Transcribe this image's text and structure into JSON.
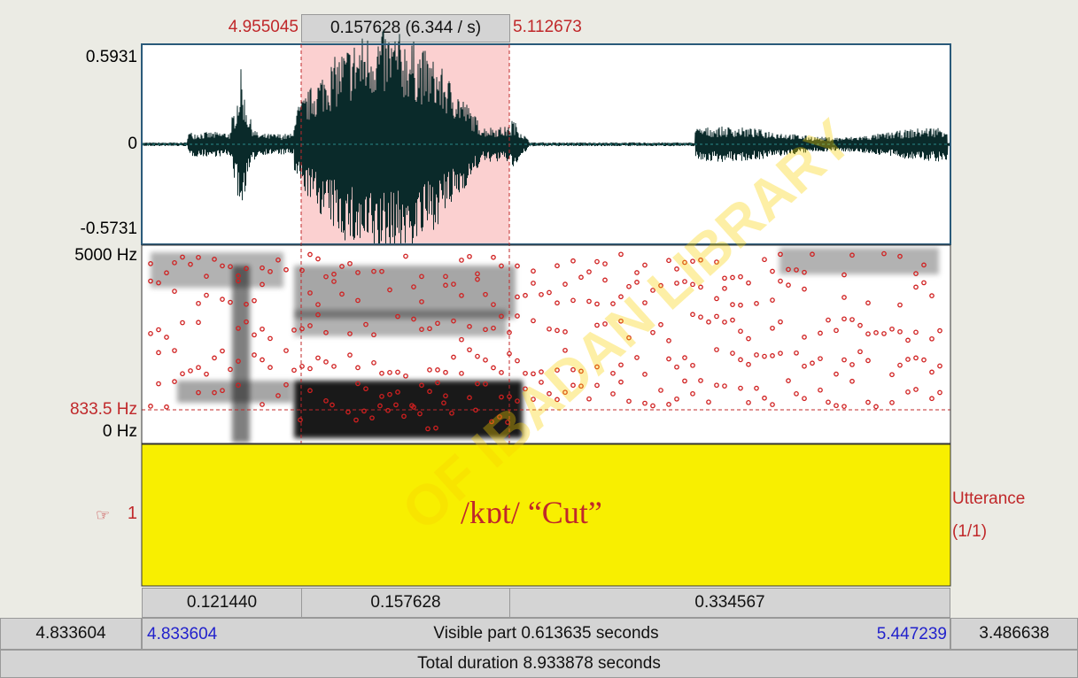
{
  "selection": {
    "start": "4.955045",
    "duration": "0.157628 (6.344 / s)",
    "end": "5.112673"
  },
  "waveform": {
    "max": "0.5931",
    "zero": "0",
    "min": "-0.5731"
  },
  "spectrogram": {
    "max": "5000 Hz",
    "cursor": "833.5 Hz",
    "min": "0 Hz"
  },
  "tier": {
    "number": "1",
    "text": "/kɒt/ “Cut”",
    "name": "Utterance",
    "count": "(1/1)"
  },
  "segments": [
    "0.121440",
    "0.157628",
    "0.334567"
  ],
  "visible": {
    "left_outside": "4.833604",
    "start": "4.833604",
    "label": "Visible part 0.613635 seconds",
    "end": "5.447239",
    "right_outside": "3.486638"
  },
  "total": "Total duration 8.933878 seconds",
  "watermark": "OF IBADAN LIBRARY"
}
